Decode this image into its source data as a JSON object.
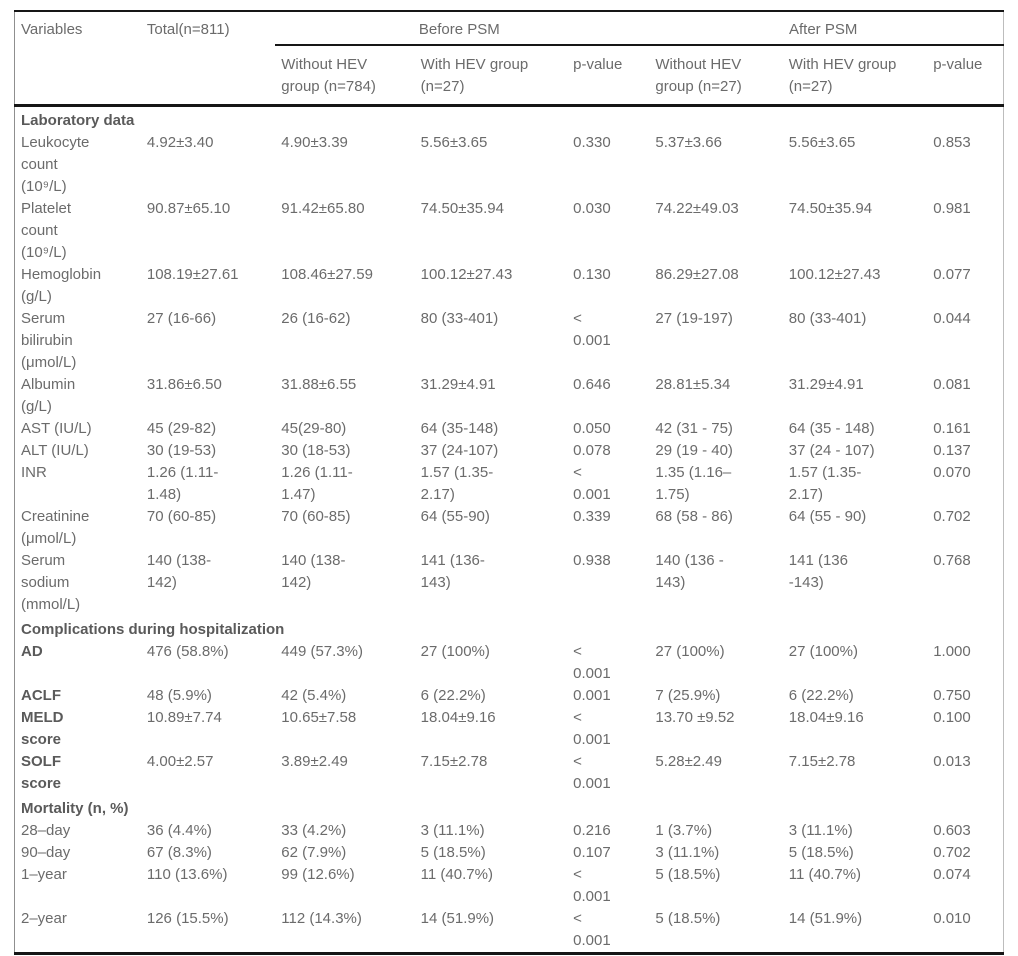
{
  "page": {
    "background_color": "#ffffff",
    "text_color": "#6b6b6b",
    "bold_text_color": "#5a5a5a",
    "rule_color": "#161616"
  },
  "table": {
    "header": {
      "variables": "Variables",
      "total": "Total(n=811)",
      "group_before": "Before PSM",
      "group_after": "After PSM",
      "subheaders": [
        "Without HEV\ngroup (n=784)",
        "With HEV group\n(n=27)",
        "p-value",
        "Without HEV\ngroup (n=27)",
        "With HEV group\n(n=27)",
        "p-value"
      ]
    },
    "sections": [
      {
        "title": "Laboratory data",
        "rows": [
          {
            "label": "Leukocyte\ncount\n(10⁹/L)",
            "bold": false,
            "cells": [
              "4.92±3.40",
              "4.90±3.39",
              "5.56±3.65",
              "0.330",
              "5.37±3.66",
              "5.56±3.65",
              "0.853"
            ]
          },
          {
            "label": "Platelet\ncount\n(10⁹/L)",
            "bold": false,
            "cells": [
              "90.87±65.10",
              "91.42±65.80",
              "74.50±35.94",
              "0.030",
              "74.22±49.03",
              "74.50±35.94",
              "0.981"
            ]
          },
          {
            "label": "Hemoglobin\n(g/L)",
            "bold": false,
            "cells": [
              "108.19±27.61",
              "108.46±27.59",
              "100.12±27.43",
              "0.130",
              "86.29±27.08",
              "100.12±27.43",
              "0.077"
            ]
          },
          {
            "label": "Serum\nbilirubin\n(μmol/L)",
            "bold": false,
            "cells": [
              "27 (16-66)",
              "26 (16-62)",
              "80 (33-401)",
              "<\n0.001",
              "27 (19-197)",
              "80 (33-401)",
              "0.044"
            ]
          },
          {
            "label": "Albumin\n(g/L)",
            "bold": false,
            "cells": [
              "31.86±6.50",
              "31.88±6.55",
              "31.29±4.91",
              "0.646",
              "28.81±5.34",
              "31.29±4.91",
              "0.081"
            ]
          },
          {
            "label": "AST (IU/L)",
            "bold": false,
            "cells": [
              "45 (29-82)",
              "45(29-80)",
              "64 (35-148)",
              "0.050",
              "42 (31 - 75)",
              "64 (35 - 148)",
              "0.161"
            ]
          },
          {
            "label": "ALT (IU/L)",
            "bold": false,
            "cells": [
              "30 (19-53)",
              "30 (18-53)",
              "37 (24-107)",
              "0.078",
              "29 (19 - 40)",
              "37 (24 - 107)",
              "0.137"
            ]
          },
          {
            "label": "INR",
            "bold": false,
            "cells": [
              "1.26 (1.11-\n1.48)",
              "1.26 (1.11-\n1.47)",
              "1.57 (1.35-\n2.17)",
              "<\n0.001",
              "1.35 (1.16–\n1.75)",
              "1.57 (1.35-\n2.17)",
              "0.070"
            ]
          },
          {
            "label": "Creatinine\n(μmol/L)",
            "bold": false,
            "cells": [
              "70 (60-85)",
              "70 (60-85)",
              "64 (55-90)",
              "0.339",
              "68 (58 - 86)",
              "64 (55 - 90)",
              "0.702"
            ]
          },
          {
            "label": "Serum\nsodium\n(mmol/L)",
            "bold": false,
            "cells": [
              "140 (138-\n142)",
              "140 (138-\n142)",
              "141 (136-\n143)",
              "0.938",
              "140 (136 -\n143)",
              "141 (136\n-143)",
              "0.768"
            ]
          }
        ]
      },
      {
        "title": "Complications during hospitalization",
        "rows": [
          {
            "label": "AD",
            "bold": true,
            "cells": [
              "476 (58.8%)",
              "449 (57.3%)",
              "27 (100%)",
              "<\n0.001",
              "27 (100%)",
              "27 (100%)",
              "1.000"
            ]
          },
          {
            "label": "ACLF",
            "bold": true,
            "cells": [
              "48 (5.9%)",
              "42 (5.4%)",
              "6 (22.2%)",
              "0.001",
              "7 (25.9%)",
              "6 (22.2%)",
              "0.750"
            ]
          },
          {
            "label": "MELD\nscore",
            "bold": true,
            "cells": [
              "10.89±7.74",
              "10.65±7.58",
              "18.04±9.16",
              "<\n0.001",
              "13.70 ±9.52",
              "18.04±9.16",
              "0.100"
            ]
          },
          {
            "label": "SOLF\nscore",
            "bold": true,
            "cells": [
              "4.00±2.57",
              "3.89±2.49",
              "7.15±2.78",
              "<\n0.001",
              "5.28±2.49",
              "7.15±2.78",
              "0.013"
            ]
          }
        ]
      },
      {
        "title": "Mortality (n, %)",
        "rows": [
          {
            "label": "28–day",
            "bold": false,
            "cells": [
              "36 (4.4%)",
              "33 (4.2%)",
              "3 (11.1%)",
              "0.216",
              "1 (3.7%)",
              "3 (11.1%)",
              "0.603"
            ]
          },
          {
            "label": "90–day",
            "bold": false,
            "cells": [
              "67 (8.3%)",
              "62 (7.9%)",
              "5 (18.5%)",
              "0.107",
              "3 (11.1%)",
              "5 (18.5%)",
              "0.702"
            ]
          },
          {
            "label": "1–year",
            "bold": false,
            "cells": [
              "110 (13.6%)",
              "99 (12.6%)",
              "11 (40.7%)",
              "<\n0.001",
              "5 (18.5%)",
              "11 (40.7%)",
              "0.074"
            ]
          },
          {
            "label": "2–year",
            "bold": false,
            "cells": [
              "126 (15.5%)",
              "112 (14.3%)",
              "14 (51.9%)",
              "<\n0.001",
              "5 (18.5%)",
              "14 (51.9%)",
              "0.010"
            ]
          }
        ]
      }
    ]
  }
}
